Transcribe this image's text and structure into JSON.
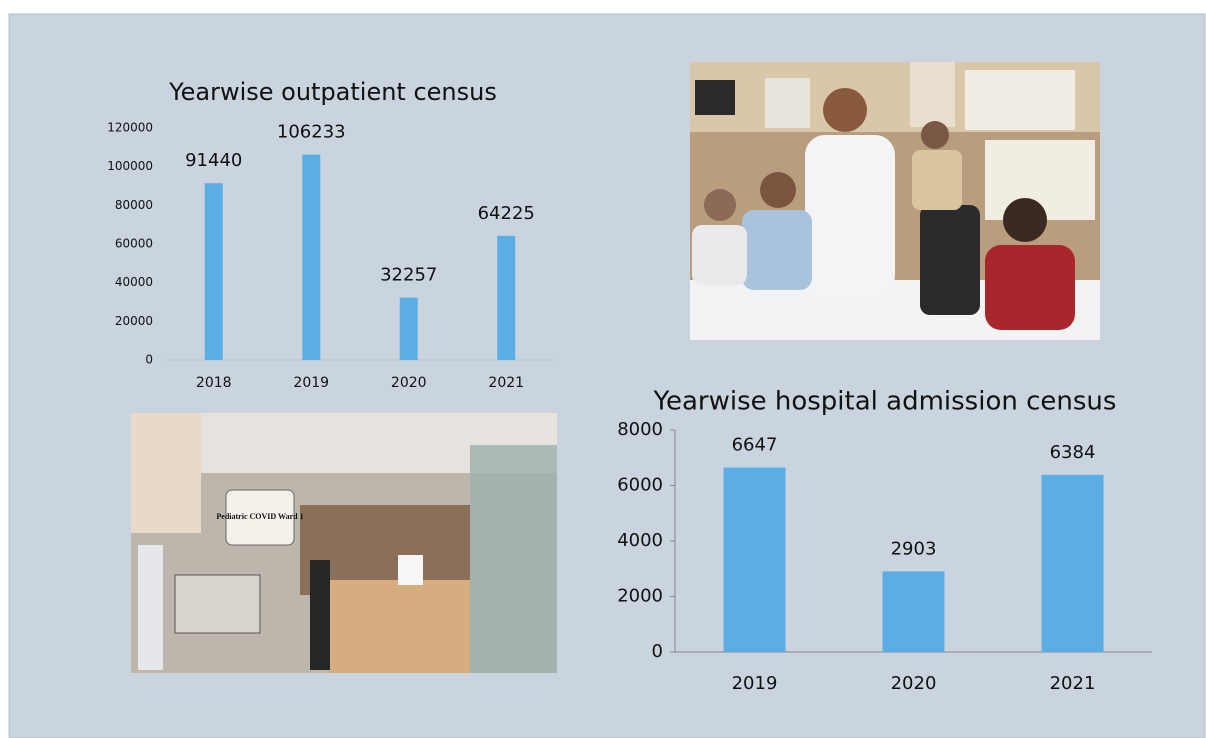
{
  "chart_data": [
    {
      "type": "bar",
      "title": "Yearwise outpatient census",
      "categories": [
        "2018",
        "2019",
        "2020",
        "2021"
      ],
      "values": [
        91440,
        106233,
        32257,
        64225
      ],
      "color": "#5aaee3",
      "ylim": [
        0,
        120000
      ],
      "yticks": [
        0,
        20000,
        40000,
        60000,
        80000,
        100000,
        120000
      ]
    },
    {
      "type": "bar",
      "title": "Yearwise hospital admission census",
      "categories": [
        "2019",
        "2020",
        "2021"
      ],
      "values": [
        6647,
        2903,
        6384
      ],
      "color": "#5aaee3",
      "ylim": [
        0,
        8000
      ],
      "yticks": [
        0,
        2000,
        4000,
        6000,
        8000
      ]
    }
  ],
  "photos": {
    "ward_sign": "Pediatric COVID Ward 1"
  }
}
